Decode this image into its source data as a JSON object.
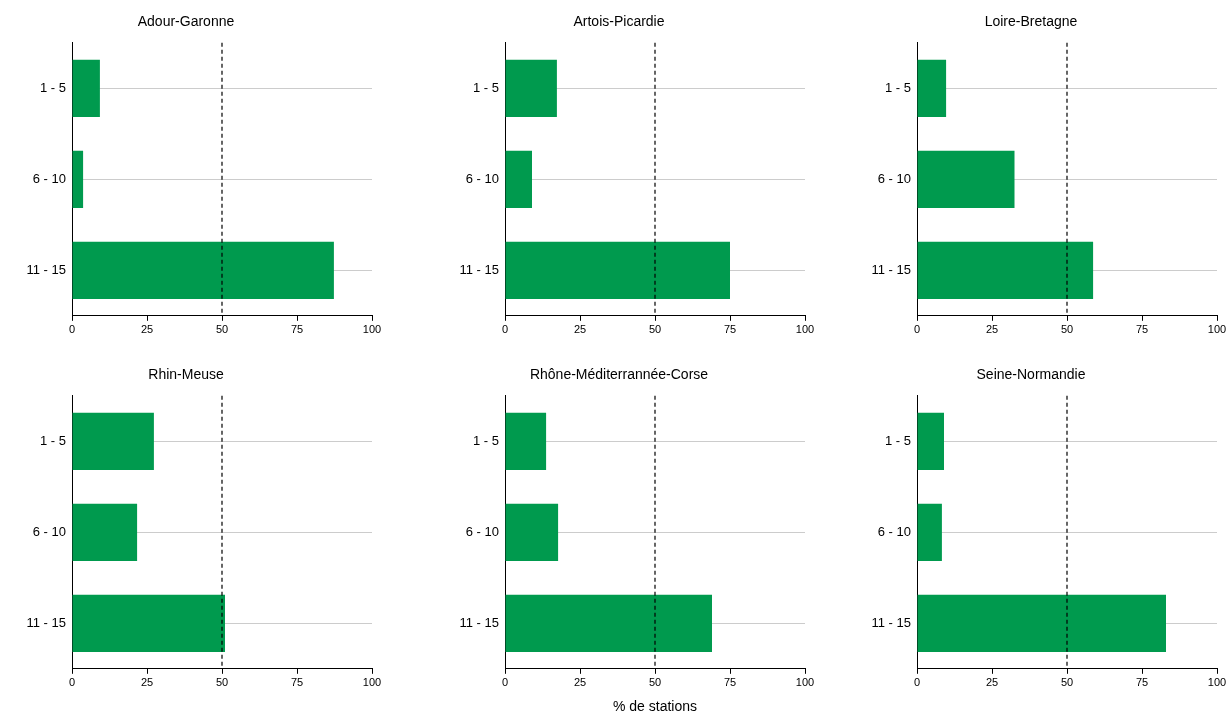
{
  "chart_data": [
    {
      "type": "bar",
      "orientation": "horizontal",
      "title": "Adour-Garonne",
      "categories": [
        "1 - 5",
        "6 - 10",
        "11 - 15"
      ],
      "values": [
        9.3,
        3.7,
        87.3
      ],
      "color": "#009a4e",
      "xlim": [
        0,
        100
      ],
      "xticks": [
        0,
        25,
        50,
        75,
        100
      ],
      "grid": "y",
      "ref_lines": [
        {
          "axis": "x",
          "value": 50,
          "line_style": "dashed",
          "color": "#000000"
        }
      ]
    },
    {
      "type": "bar",
      "orientation": "horizontal",
      "title": "Artois-Picardie",
      "categories": [
        "1 - 5",
        "6 - 10",
        "11 - 15"
      ],
      "values": [
        17.3,
        9,
        75
      ],
      "color": "#009a4e",
      "xlim": [
        0,
        100
      ],
      "xticks": [
        0,
        25,
        50,
        75,
        100
      ],
      "grid": "y",
      "ref_lines": [
        {
          "axis": "x",
          "value": 50,
          "line_style": "dashed",
          "color": "#000000"
        }
      ]
    },
    {
      "type": "bar",
      "orientation": "horizontal",
      "title": "Loire-Bretagne",
      "categories": [
        "1 - 5",
        "6 - 10",
        "11 - 15"
      ],
      "values": [
        9.7,
        32.5,
        58.7
      ],
      "color": "#009a4e",
      "xlim": [
        0,
        100
      ],
      "xticks": [
        0,
        25,
        50,
        75,
        100
      ],
      "grid": "y",
      "ref_lines": [
        {
          "axis": "x",
          "value": 50,
          "line_style": "dashed",
          "color": "#000000"
        }
      ]
    },
    {
      "type": "bar",
      "orientation": "horizontal",
      "title": "Rhin-Meuse",
      "categories": [
        "1 - 5",
        "6 - 10",
        "11 - 15"
      ],
      "values": [
        27.3,
        21.7,
        51
      ],
      "color": "#009a4e",
      "xlim": [
        0,
        100
      ],
      "xticks": [
        0,
        25,
        50,
        75,
        100
      ],
      "grid": "y",
      "ref_lines": [
        {
          "axis": "x",
          "value": 50,
          "line_style": "dashed",
          "color": "#000000"
        }
      ]
    },
    {
      "type": "bar",
      "orientation": "horizontal",
      "title": "Rhône-Méditerrannée-Corse",
      "xlabel": "% de stations",
      "categories": [
        "1 - 5",
        "6 - 10",
        "11 - 15"
      ],
      "values": [
        13.7,
        17.7,
        69
      ],
      "color": "#009a4e",
      "xlim": [
        0,
        100
      ],
      "xticks": [
        0,
        25,
        50,
        75,
        100
      ],
      "grid": "y",
      "ref_lines": [
        {
          "axis": "x",
          "value": 50,
          "line_style": "dashed",
          "color": "#000000"
        }
      ]
    },
    {
      "type": "bar",
      "orientation": "horizontal",
      "title": "Seine-Normandie",
      "categories": [
        "1 - 5",
        "6 - 10",
        "11 - 15"
      ],
      "values": [
        9,
        8.3,
        83
      ],
      "color": "#009a4e",
      "xlim": [
        0,
        100
      ],
      "xticks": [
        0,
        25,
        50,
        75,
        100
      ],
      "grid": "y",
      "ref_lines": [
        {
          "axis": "x",
          "value": 50,
          "line_style": "dashed",
          "color": "#000000"
        }
      ]
    }
  ]
}
